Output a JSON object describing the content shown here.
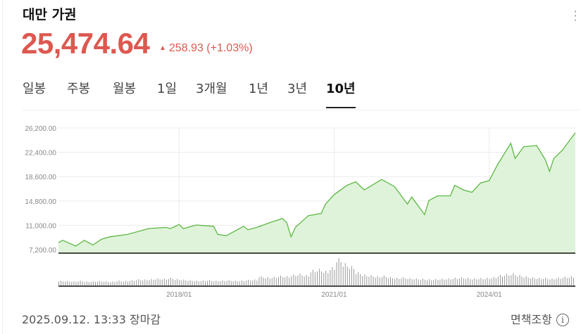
{
  "header": {
    "title": "대만 가권",
    "price": "25,474.64",
    "change_arrow": "▲",
    "change": "258.93 (+1.03%)",
    "menu_icon": "kebab-menu-icon",
    "up_color": "#dd5850"
  },
  "tabs": [
    {
      "label": "일봉",
      "active": false
    },
    {
      "label": "주봉",
      "active": false
    },
    {
      "label": "월봉",
      "active": false
    },
    {
      "label": "1일",
      "active": false
    },
    {
      "label": "3개월",
      "active": false
    },
    {
      "label": "1년",
      "active": false
    },
    {
      "label": "3년",
      "active": false
    },
    {
      "label": "10년",
      "active": true
    }
  ],
  "footer": {
    "timestamp": "2025.09.12. 13:33 장마감",
    "disclaimer": "면책조항",
    "info_icon": "i"
  },
  "chart_data": {
    "type": "area",
    "line_color": "#5cb843",
    "fill_color": "#dff3da",
    "grid": true,
    "y_ticks": [
      "26,200.00",
      "22,400.00",
      "18,600.00",
      "14,800.00",
      "11,000.00",
      "7,200.00"
    ],
    "ylim": [
      7200,
      26200
    ],
    "x_ticks": [
      "2018/01",
      "2021/01",
      "2024/01"
    ],
    "xlim": [
      "2015-09",
      "2025-09"
    ],
    "series": [
      {
        "points": [
          [
            "2015-09",
            8300
          ],
          [
            "2015-10",
            8660
          ],
          [
            "2016-01",
            7750
          ],
          [
            "2016-03",
            8660
          ],
          [
            "2016-05",
            7930
          ],
          [
            "2016-07",
            8840
          ],
          [
            "2016-09",
            9210
          ],
          [
            "2017-01",
            9570
          ],
          [
            "2017-06",
            10490
          ],
          [
            "2017-10",
            10670
          ],
          [
            "2017-11",
            10490
          ],
          [
            "2018-01",
            11110
          ],
          [
            "2018-02",
            10490
          ],
          [
            "2018-05",
            11040
          ],
          [
            "2018-09",
            10850
          ],
          [
            "2018-10",
            9570
          ],
          [
            "2018-12",
            9390
          ],
          [
            "2019-04",
            10850
          ],
          [
            "2019-05",
            10310
          ],
          [
            "2019-07",
            10670
          ],
          [
            "2019-10",
            11400
          ],
          [
            "2020-01",
            12060
          ],
          [
            "2020-02",
            11400
          ],
          [
            "2020-03",
            9210
          ],
          [
            "2020-04",
            10670
          ],
          [
            "2020-07",
            12500
          ],
          [
            "2020-10",
            12860
          ],
          [
            "2020-11",
            14320
          ],
          [
            "2021-01",
            15790
          ],
          [
            "2021-04",
            17250
          ],
          [
            "2021-06",
            17800
          ],
          [
            "2021-08",
            16520
          ],
          [
            "2021-12",
            18160
          ],
          [
            "2022-03",
            17060
          ],
          [
            "2022-06",
            14320
          ],
          [
            "2022-07",
            15420
          ],
          [
            "2022-10",
            12680
          ],
          [
            "2022-11",
            14870
          ],
          [
            "2023-01",
            15600
          ],
          [
            "2023-04",
            15600
          ],
          [
            "2023-05",
            17250
          ],
          [
            "2023-07",
            16520
          ],
          [
            "2023-09",
            16150
          ],
          [
            "2023-11",
            17610
          ],
          [
            "2024-01",
            17980
          ],
          [
            "2024-03",
            20540
          ],
          [
            "2024-06",
            23820
          ],
          [
            "2024-07",
            21450
          ],
          [
            "2024-09",
            23270
          ],
          [
            "2024-12",
            23460
          ],
          [
            "2025-02",
            21270
          ],
          [
            "2025-03",
            19440
          ],
          [
            "2025-04",
            21450
          ],
          [
            "2025-06",
            22730
          ],
          [
            "2025-09",
            25470
          ]
        ]
      }
    ],
    "volume_relative": [
      0.2,
      0.19,
      0.18,
      0.2,
      0.17,
      0.18,
      0.19,
      0.18,
      0.17,
      0.2,
      0.19,
      0.22,
      0.25,
      0.24,
      0.26,
      0.28,
      0.27,
      0.3,
      0.26,
      0.24,
      0.22,
      0.2,
      0.21,
      0.22,
      0.2,
      0.21,
      0.22,
      0.2,
      0.21,
      0.23,
      0.24,
      0.36,
      0.32,
      0.34,
      0.38,
      0.36,
      0.42,
      0.45,
      0.4,
      0.58,
      0.62,
      0.55,
      0.68,
      1.0,
      0.82,
      0.72,
      0.5,
      0.42,
      0.4,
      0.36,
      0.38,
      0.33,
      0.3,
      0.32,
      0.29,
      0.28,
      0.27,
      0.25,
      0.26,
      0.27,
      0.28,
      0.3,
      0.32,
      0.3,
      0.28,
      0.29,
      0.3,
      0.33,
      0.4,
      0.44,
      0.46,
      0.4,
      0.36,
      0.32,
      0.3,
      0.3,
      0.28,
      0.31,
      0.34,
      0.36
    ]
  }
}
